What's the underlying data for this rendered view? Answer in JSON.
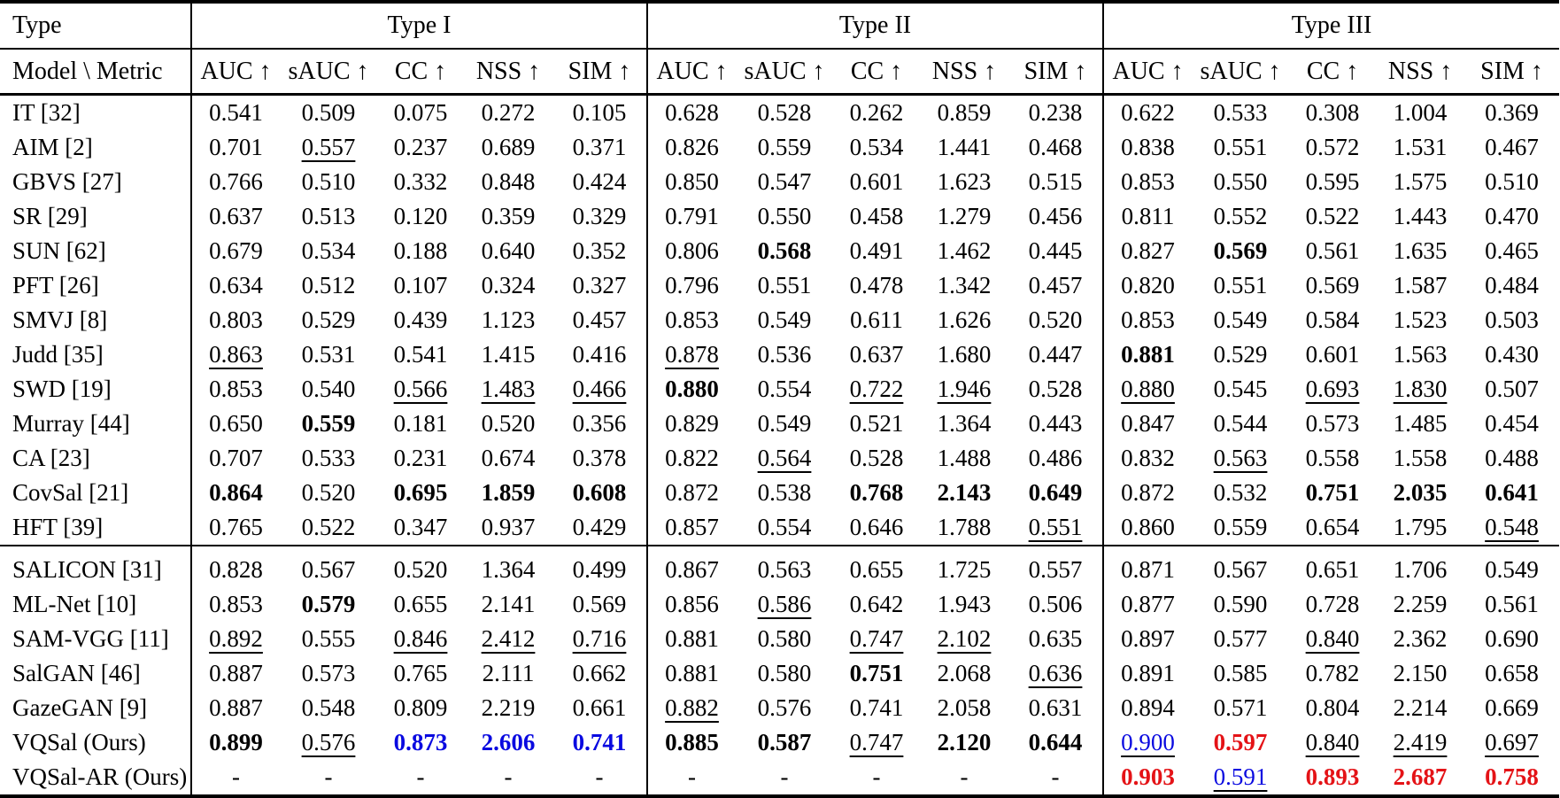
{
  "table": {
    "corner_label": "Type",
    "row_header": "Model \\ Metric",
    "col_groups": [
      "Type I",
      "Type II",
      "Type III"
    ],
    "metrics": [
      "AUC ↑",
      "sAUC ↑",
      "CC ↑",
      "NSS ↑",
      "SIM ↑"
    ],
    "colors": {
      "blue": "#0a0ae0",
      "red": "#e41317"
    },
    "legend_note_flags": "b=bold(best), u=underlined(second best), B=blue text, R=red text",
    "sections": [
      {
        "rows": [
          {
            "model": "IT [32]",
            "type1": [
              "0.541",
              "0.509",
              "0.075",
              "0.272",
              "0.105"
            ],
            "type2": [
              "0.628",
              "0.528",
              "0.262",
              "0.859",
              "0.238"
            ],
            "type3": [
              "0.622",
              "0.533",
              "0.308",
              "1.004",
              "0.369"
            ]
          },
          {
            "model": "AIM [2]",
            "type1": [
              "0.701",
              "0.557|u",
              "0.237",
              "0.689",
              "0.371"
            ],
            "type2": [
              "0.826",
              "0.559",
              "0.534",
              "1.441",
              "0.468"
            ],
            "type3": [
              "0.838",
              "0.551",
              "0.572",
              "1.531",
              "0.467"
            ]
          },
          {
            "model": "GBVS [27]",
            "type1": [
              "0.766",
              "0.510",
              "0.332",
              "0.848",
              "0.424"
            ],
            "type2": [
              "0.850",
              "0.547",
              "0.601",
              "1.623",
              "0.515"
            ],
            "type3": [
              "0.853",
              "0.550",
              "0.595",
              "1.575",
              "0.510"
            ]
          },
          {
            "model": "SR [29]",
            "type1": [
              "0.637",
              "0.513",
              "0.120",
              "0.359",
              "0.329"
            ],
            "type2": [
              "0.791",
              "0.550",
              "0.458",
              "1.279",
              "0.456"
            ],
            "type3": [
              "0.811",
              "0.552",
              "0.522",
              "1.443",
              "0.470"
            ]
          },
          {
            "model": "SUN [62]",
            "type1": [
              "0.679",
              "0.534",
              "0.188",
              "0.640",
              "0.352"
            ],
            "type2": [
              "0.806",
              "0.568|b",
              "0.491",
              "1.462",
              "0.445"
            ],
            "type3": [
              "0.827",
              "0.569|b",
              "0.561",
              "1.635",
              "0.465"
            ]
          },
          {
            "model": "PFT [26]",
            "type1": [
              "0.634",
              "0.512",
              "0.107",
              "0.324",
              "0.327"
            ],
            "type2": [
              "0.796",
              "0.551",
              "0.478",
              "1.342",
              "0.457"
            ],
            "type3": [
              "0.820",
              "0.551",
              "0.569",
              "1.587",
              "0.484"
            ]
          },
          {
            "model": "SMVJ [8]",
            "type1": [
              "0.803",
              "0.529",
              "0.439",
              "1.123",
              "0.457"
            ],
            "type2": [
              "0.853",
              "0.549",
              "0.611",
              "1.626",
              "0.520"
            ],
            "type3": [
              "0.853",
              "0.549",
              "0.584",
              "1.523",
              "0.503"
            ]
          },
          {
            "model": "Judd [35]",
            "type1": [
              "0.863|u",
              "0.531",
              "0.541",
              "1.415",
              "0.416"
            ],
            "type2": [
              "0.878|u",
              "0.536",
              "0.637",
              "1.680",
              "0.447"
            ],
            "type3": [
              "0.881|b",
              "0.529",
              "0.601",
              "1.563",
              "0.430"
            ]
          },
          {
            "model": "SWD [19]",
            "type1": [
              "0.853",
              "0.540",
              "0.566|u",
              "1.483|u",
              "0.466|u"
            ],
            "type2": [
              "0.880|b",
              "0.554",
              "0.722|u",
              "1.946|u",
              "0.528"
            ],
            "type3": [
              "0.880|u",
              "0.545",
              "0.693|u",
              "1.830|u",
              "0.507"
            ]
          },
          {
            "model": "Murray [44]",
            "type1": [
              "0.650",
              "0.559|b",
              "0.181",
              "0.520",
              "0.356"
            ],
            "type2": [
              "0.829",
              "0.549",
              "0.521",
              "1.364",
              "0.443"
            ],
            "type3": [
              "0.847",
              "0.544",
              "0.573",
              "1.485",
              "0.454"
            ]
          },
          {
            "model": "CA [23]",
            "type1": [
              "0.707",
              "0.533",
              "0.231",
              "0.674",
              "0.378"
            ],
            "type2": [
              "0.822",
              "0.564|u",
              "0.528",
              "1.488",
              "0.486"
            ],
            "type3": [
              "0.832",
              "0.563|u",
              "0.558",
              "1.558",
              "0.488"
            ]
          },
          {
            "model": "CovSal [21]",
            "type1": [
              "0.864|b",
              "0.520",
              "0.695|b",
              "1.859|b",
              "0.608|b"
            ],
            "type2": [
              "0.872",
              "0.538",
              "0.768|b",
              "2.143|b",
              "0.649|b"
            ],
            "type3": [
              "0.872",
              "0.532",
              "0.751|b",
              "2.035|b",
              "0.641|b"
            ]
          },
          {
            "model": "HFT [39]",
            "type1": [
              "0.765",
              "0.522",
              "0.347",
              "0.937",
              "0.429"
            ],
            "type2": [
              "0.857",
              "0.554",
              "0.646",
              "1.788",
              "0.551|u"
            ],
            "type3": [
              "0.860",
              "0.559",
              "0.654",
              "1.795",
              "0.548|u"
            ]
          }
        ]
      },
      {
        "rows": [
          {
            "model": "SALICON [31]",
            "type1": [
              "0.828",
              "0.567",
              "0.520",
              "1.364",
              "0.499"
            ],
            "type2": [
              "0.867",
              "0.563",
              "0.655",
              "1.725",
              "0.557"
            ],
            "type3": [
              "0.871",
              "0.567",
              "0.651",
              "1.706",
              "0.549"
            ]
          },
          {
            "model": "ML-Net [10]",
            "type1": [
              "0.853",
              "0.579|b",
              "0.655",
              "2.141",
              "0.569"
            ],
            "type2": [
              "0.856",
              "0.586|u",
              "0.642",
              "1.943",
              "0.506"
            ],
            "type3": [
              "0.877",
              "0.590",
              "0.728",
              "2.259",
              "0.561"
            ]
          },
          {
            "model": "SAM-VGG [11]",
            "type1": [
              "0.892|u",
              "0.555",
              "0.846|u",
              "2.412|u",
              "0.716|u"
            ],
            "type2": [
              "0.881",
              "0.580",
              "0.747|u",
              "2.102|u",
              "0.635"
            ],
            "type3": [
              "0.897",
              "0.577",
              "0.840|u",
              "2.362",
              "0.690"
            ]
          },
          {
            "model": "SalGAN [46]",
            "type1": [
              "0.887",
              "0.573",
              "0.765",
              "2.111",
              "0.662"
            ],
            "type2": [
              "0.881",
              "0.580",
              "0.751|b",
              "2.068",
              "0.636|u"
            ],
            "type3": [
              "0.891",
              "0.585",
              "0.782",
              "2.150",
              "0.658"
            ]
          },
          {
            "model": "GazeGAN [9]",
            "type1": [
              "0.887",
              "0.548",
              "0.809",
              "2.219",
              "0.661"
            ],
            "type2": [
              "0.882|u",
              "0.576",
              "0.741",
              "2.058",
              "0.631"
            ],
            "type3": [
              "0.894",
              "0.571",
              "0.804",
              "2.214",
              "0.669"
            ]
          },
          {
            "model": "VQSal (Ours)",
            "type1": [
              "0.899|b",
              "0.576|u",
              "0.873|bB",
              "2.606|bB",
              "0.741|bB"
            ],
            "type2": [
              "0.885|b",
              "0.587|b",
              "0.747|u",
              "2.120|b",
              "0.644|b"
            ],
            "type3": [
              "0.900|uB",
              "0.597|bR",
              "0.840|u",
              "2.419|u",
              "0.697|u"
            ]
          },
          {
            "model": "VQSal-AR (Ours)",
            "type1": [
              "-",
              "-",
              "-",
              "-",
              "-"
            ],
            "type2": [
              "-",
              "-",
              "-",
              "-",
              "-"
            ],
            "type3": [
              "0.903|bR",
              "0.591|uB",
              "0.893|bR",
              "2.687|bR",
              "0.758|bR"
            ]
          }
        ]
      }
    ]
  }
}
